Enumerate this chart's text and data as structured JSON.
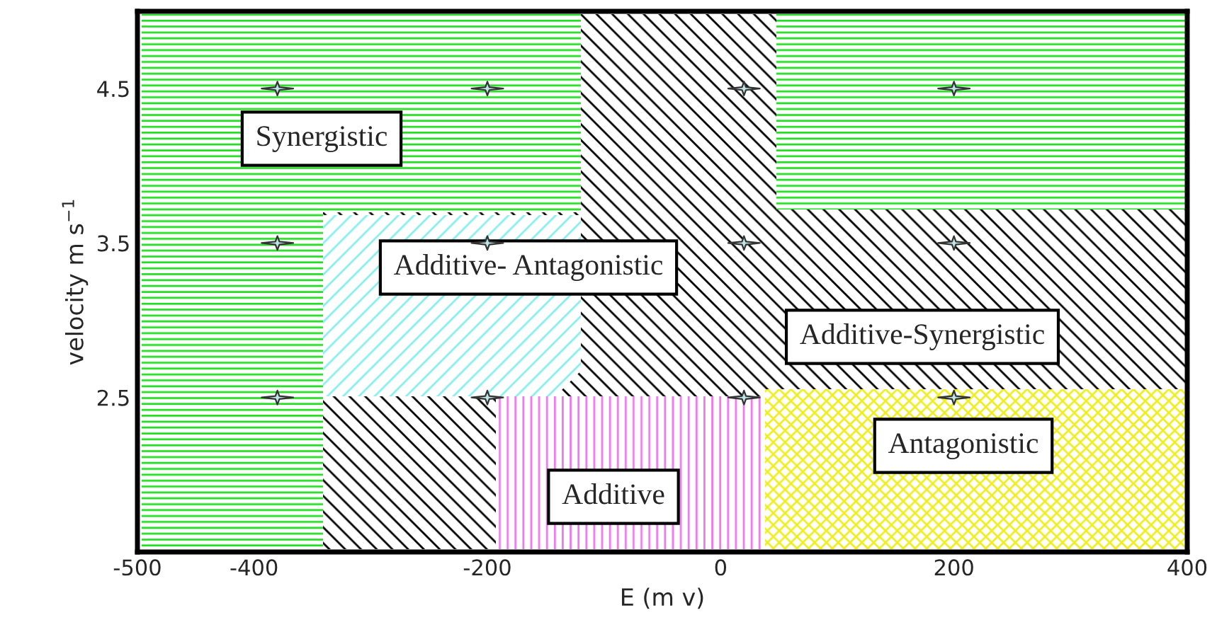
{
  "chart_data": {
    "type": "scatter",
    "xlabel": "E (m v)",
    "ylabel": "velocity m s$^{−1}$",
    "x": [
      -380,
      -200,
      20,
      200,
      -380,
      -200,
      20,
      200,
      -380,
      -200,
      20,
      200
    ],
    "values": [
      4.5,
      4.5,
      4.5,
      4.5,
      3.5,
      3.5,
      3.5,
      3.5,
      2.5,
      2.5,
      2.5,
      2.5
    ],
    "color": "#bfe6e6",
    "marker": "star",
    "xlim": [
      -500,
      400
    ],
    "ylim": [
      1.5,
      5.0
    ],
    "xticks": [
      -500,
      -400,
      -200,
      0,
      200,
      400
    ],
    "yticks": [
      2.5,
      3.5,
      4.5
    ],
    "annotations": [
      "Synergistic",
      "Additive- Antagonistic",
      "Additive-Synergistic",
      "Antagonistic",
      "Additive"
    ]
  }
}
